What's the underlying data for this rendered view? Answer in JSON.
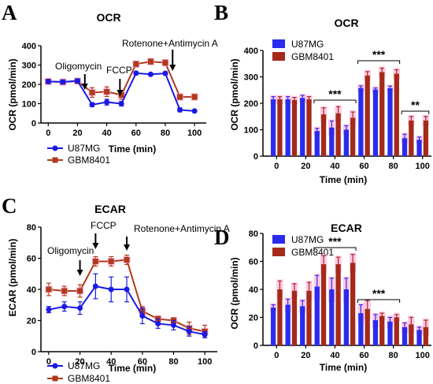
{
  "colors": {
    "u87": "#1a1ae6",
    "gbm": "#b03a1c",
    "gbmBar": "#a52a1a",
    "u87Bar": "#2b2bef",
    "err": "#ff9acd"
  },
  "panel_labels": [
    "A",
    "B",
    "C",
    "D"
  ],
  "chart_data": [
    {
      "panel": "A",
      "type": "line",
      "title": "OCR",
      "xlabel": "Time (min)",
      "ylabel": "OCR (pmol/min)",
      "xlim": [
        -5,
        108
      ],
      "ylim": [
        0,
        400
      ],
      "xticks": [
        "0",
        "20",
        "40",
        "60",
        "80",
        "100"
      ],
      "yticks": [
        "0",
        "100",
        "200",
        "300",
        "400"
      ],
      "x": [
        0,
        10,
        20,
        30,
        40,
        50,
        60,
        70,
        80,
        90,
        100
      ],
      "series": [
        {
          "name": "U87MG",
          "values": [
            215,
            213,
            218,
            95,
            108,
            100,
            258,
            252,
            257,
            68,
            62
          ],
          "err": [
            10,
            10,
            10,
            10,
            15,
            12,
            8,
            6,
            8,
            10,
            6
          ]
        },
        {
          "name": "GBM8401",
          "values": [
            215,
            212,
            217,
            158,
            162,
            145,
            305,
            318,
            312,
            135,
            135
          ],
          "err": [
            10,
            10,
            10,
            25,
            25,
            22,
            15,
            15,
            15,
            15,
            15
          ]
        }
      ],
      "annotations": [
        "Oligomycin",
        "FCCP",
        "Rotenone+Antimycin A"
      ]
    },
    {
      "panel": "B",
      "type": "bar",
      "title": "OCR",
      "xlabel": "Time (min)",
      "ylabel": "OCR (pmol/min)",
      "ylim": [
        0,
        400
      ],
      "xticks": [
        "0",
        "20",
        "40",
        "60",
        "80",
        "100"
      ],
      "yticks": [
        "0",
        "100",
        "200",
        "300",
        "400"
      ],
      "x": [
        0,
        10,
        20,
        30,
        40,
        50,
        60,
        70,
        80,
        90,
        100
      ],
      "series": [
        {
          "name": "U87MG",
          "values": [
            215,
            215,
            220,
            95,
            108,
            100,
            258,
            252,
            257,
            68,
            62
          ],
          "err": [
            10,
            10,
            10,
            10,
            25,
            15,
            8,
            6,
            8,
            15,
            10
          ]
        },
        {
          "name": "GBM8401",
          "values": [
            215,
            212,
            215,
            158,
            162,
            145,
            305,
            318,
            312,
            135,
            135
          ],
          "err": [
            10,
            10,
            10,
            25,
            25,
            22,
            15,
            15,
            15,
            15,
            15
          ]
        }
      ],
      "significance": [
        "***",
        "***",
        "**"
      ]
    },
    {
      "panel": "C",
      "type": "line",
      "title": "ECAR",
      "xlabel": "Time (min)",
      "ylabel": "ECAR (pmol/min)",
      "xlim": [
        -5,
        108
      ],
      "ylim": [
        0,
        80
      ],
      "xticks": [
        "0",
        "20",
        "40",
        "60",
        "80",
        "100"
      ],
      "yticks": [
        "0",
        "20",
        "40",
        "60",
        "80"
      ],
      "x": [
        0,
        10,
        20,
        30,
        40,
        50,
        60,
        70,
        80,
        90,
        100
      ],
      "series": [
        {
          "name": "U87MG",
          "values": [
            27,
            29,
            28,
            42,
            40,
            40,
            23,
            18,
            17,
            13,
            11
          ],
          "err": [
            2,
            3,
            4,
            8,
            8,
            8,
            5,
            3,
            3,
            3,
            2
          ]
        },
        {
          "name": "GBM8401",
          "values": [
            40,
            39,
            39,
            58,
            58,
            59,
            26,
            21,
            20,
            15,
            13
          ],
          "err": [
            4,
            3,
            4,
            3,
            3,
            3,
            3,
            2,
            2,
            4,
            4
          ]
        }
      ],
      "annotations": [
        "Oligomycin",
        "FCCP",
        "Rotenone+Antimycin A"
      ]
    },
    {
      "panel": "D",
      "type": "bar",
      "title": "ECAR",
      "xlabel": "Time (min)",
      "ylabel": "OCR (pmol/min)",
      "ylim": [
        0,
        80
      ],
      "xticks": [
        "0",
        "20",
        "40",
        "60",
        "80",
        "100"
      ],
      "yticks": [
        "0",
        "20",
        "40",
        "60",
        "80"
      ],
      "x": [
        0,
        10,
        20,
        30,
        40,
        50,
        60,
        70,
        80,
        90,
        100
      ],
      "series": [
        {
          "name": "U87MG",
          "values": [
            27,
            29,
            28,
            42,
            40,
            40,
            23,
            18,
            17,
            13,
            11
          ],
          "err": [
            2,
            4,
            4,
            8,
            8,
            8,
            6,
            4,
            3,
            3,
            2
          ]
        },
        {
          "name": "GBM8401",
          "values": [
            40,
            39,
            39,
            58,
            58,
            59,
            26,
            21,
            20,
            15,
            13
          ],
          "err": [
            6,
            5,
            6,
            6,
            5,
            6,
            6,
            2,
            2,
            5,
            5
          ]
        }
      ],
      "significance": [
        "***",
        "***"
      ]
    }
  ]
}
